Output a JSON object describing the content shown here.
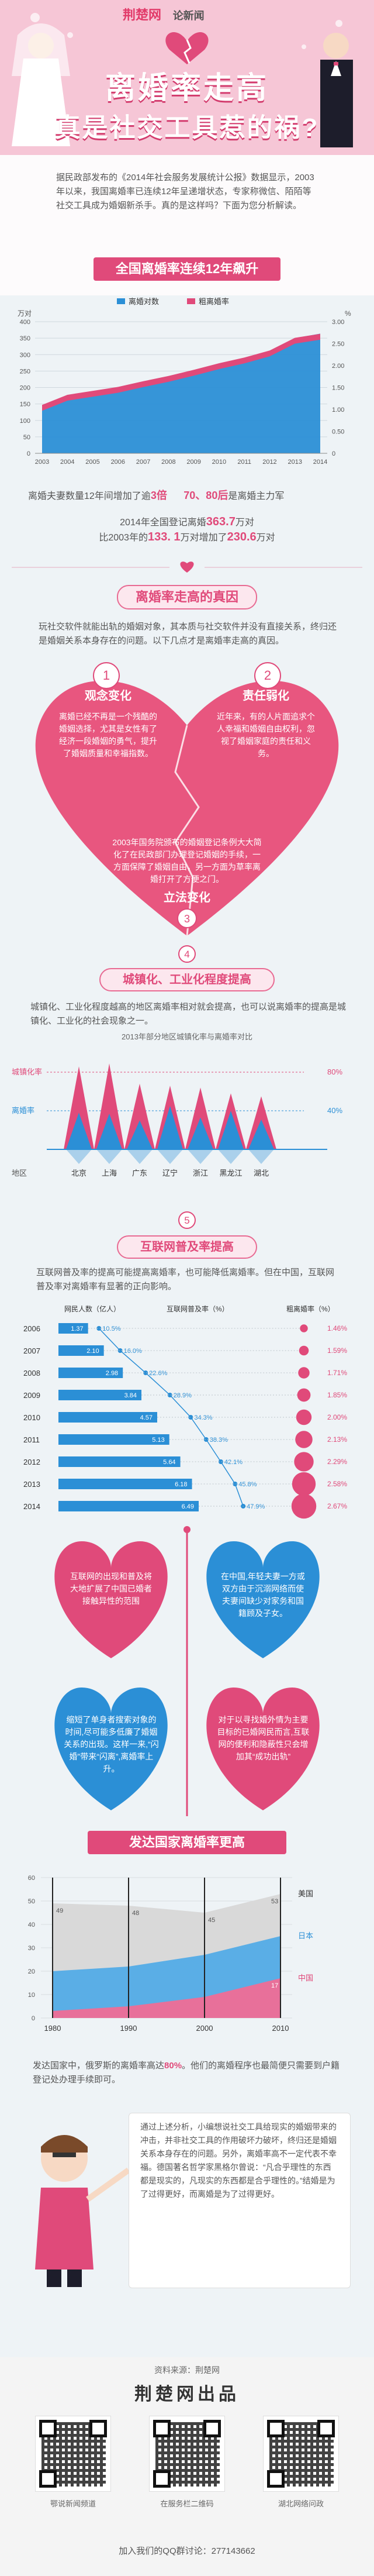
{
  "header": {
    "logo": "荆楚网",
    "logo_sub": "论新闻",
    "title_line1": "离婚率走高",
    "title_line2": "真是社交工具惹的祸?",
    "intro": "据民政部发布的《2014年社会服务发展统计公报》数据显示，2003年以来，我国离婚率已连续12年呈递增状态，专家称微信、陌陌等社交工具成为婚姻新杀手。真的是这样吗？下面为您分析解读。"
  },
  "section1": {
    "title": "全国离婚率连续12年飙升"
  },
  "chart1": {
    "type": "area",
    "legend": [
      "离婚对数",
      "粗离婚率"
    ],
    "y_left_unit": "万对",
    "y_right_unit": "%",
    "y_left_ticks": [
      "400",
      "350",
      "300",
      "250",
      "200",
      "150",
      "100",
      "50",
      "0"
    ],
    "y_right_ticks": [
      "3.00",
      "2.50",
      "2.00",
      "1.50",
      "1.00",
      "0.50",
      "0"
    ],
    "x_ticks": [
      "2003",
      "2004",
      "2005",
      "2006",
      "2007",
      "2008",
      "2009",
      "2010",
      "2011",
      "2012",
      "2013",
      "2014"
    ]
  },
  "chart_data": [
    {
      "type": "area",
      "title": "全国离婚率连续12年飙升",
      "x": [
        2003,
        2004,
        2005,
        2006,
        2007,
        2008,
        2009,
        2010,
        2011,
        2012,
        2013,
        2014
      ],
      "series": [
        {
          "name": "离婚对数",
          "unit": "万对",
          "values": [
            133.1,
            166.5,
            178.5,
            191.3,
            209.8,
            226.9,
            246.8,
            267.8,
            287.4,
            310.4,
            350.0,
            363.7
          ]
        },
        {
          "name": "粗离婚率",
          "unit": "%",
          "values": [
            1.05,
            1.28,
            1.37,
            1.46,
            1.59,
            1.71,
            1.85,
            2.0,
            2.13,
            2.29,
            2.58,
            2.67
          ]
        }
      ],
      "ylim_left": [
        0,
        400
      ],
      "ylim_right": [
        0,
        3.0
      ]
    },
    {
      "type": "bar",
      "title": "2013年部分地区城镇化率与离婚率对比",
      "categories": [
        "北京",
        "上海",
        "广东",
        "辽宁",
        "浙江",
        "黑龙江",
        "湖北"
      ],
      "series": [
        {
          "name": "城镇化率",
          "values": [
            86,
            89,
            68,
            66,
            64,
            58,
            55
          ]
        },
        {
          "name": "离婚率",
          "values": [
            38,
            37,
            30,
            45,
            33,
            40,
            31
          ]
        }
      ],
      "ylim": [
        0,
        100
      ]
    },
    {
      "type": "bar",
      "title": "互联网普及率与离婚率",
      "categories": [
        "2006",
        "2007",
        "2008",
        "2009",
        "2010",
        "2011",
        "2012",
        "2013",
        "2014"
      ],
      "series": [
        {
          "name": "网民人数（亿人）",
          "values": [
            1.37,
            2.1,
            2.98,
            3.84,
            4.57,
            5.13,
            5.64,
            6.18,
            6.49
          ]
        },
        {
          "name": "互联网普及率（%）",
          "values": [
            10.5,
            16.0,
            22.6,
            28.9,
            34.3,
            38.3,
            42.1,
            45.8,
            47.9
          ]
        },
        {
          "name": "粗离婚率（%）",
          "values": [
            1.46,
            1.59,
            1.71,
            1.85,
            2.0,
            2.13,
            2.29,
            2.58,
            2.67
          ]
        }
      ]
    },
    {
      "type": "area",
      "title": "发达国家离婚率更高",
      "x": [
        1980,
        1990,
        2000,
        2010
      ],
      "series": [
        {
          "name": "美国",
          "values": [
            49,
            48,
            45,
            53
          ]
        },
        {
          "name": "日本",
          "values": [
            20,
            22,
            27,
            35
          ]
        },
        {
          "name": "中国",
          "values": [
            3,
            5,
            9,
            17
          ]
        }
      ],
      "ylim": [
        0,
        60
      ]
    }
  ],
  "stats": {
    "line1_prefix": "离婚夫妻数量12年间增加了逾",
    "line1_num": "3倍",
    "line1_mid": "70、80后",
    "line1_suffix": "是离婚主力军",
    "line2_prefix": "2014年全国登记离婚",
    "line2_num": "363.7",
    "line2_suffix": "万对",
    "line3_prefix": "比2003年的",
    "line3_num1": "133. 1",
    "line3_mid": "万对增加了",
    "line3_num2": "230.6",
    "line3_suffix": "万对"
  },
  "section2": {
    "title": "离婚率走高的真因",
    "intro": "玩社交软件就能出轨的婚姻对象，其本质与社交软件并没有直接关系，终归还是婚姻关系本身存在的问题。以下几点才是离婚率走高的真因。",
    "items": [
      {
        "num": "1",
        "title": "观念变化",
        "text": "离婚已经不再是一个残酷的婚姻选择，尤其是女性有了经济一段婚姻的勇气，提升了婚姻质量和幸福指数。"
      },
      {
        "num": "2",
        "title": "责任弱化",
        "text": "近年来，有的人片面追求个人幸福和婚姻自由权利，忽视了婚姻家庭的责任和义务。"
      },
      {
        "num": "3",
        "title": "立法变化",
        "text": "2003年国务院颁布的婚姻登记条例大大简化了在民政部门办理登记婚姻的手续，一方面保障了婚姻自由，另一方面为草率离婚打开了方便之门。"
      },
      {
        "num": "4",
        "title": "城镇化、工业化程度提高",
        "text": "城镇化、工业化程度越高的地区离婚率相对就会提高，也可以说离婚率的提高是城镇化、工业化的社会现象之一。"
      }
    ]
  },
  "chart2": {
    "title": "2013年部分地区城镇化率与离婚率对比",
    "y_label_top": "城镇化率",
    "y_label_mid": "离婚率",
    "y_label_bottom": "地区",
    "pct80": "80%",
    "pct40": "40%",
    "cities": [
      "北京",
      "上海",
      "广东",
      "辽宁",
      "浙江",
      "黑龙江",
      "湖北"
    ]
  },
  "section5": {
    "num": "5",
    "title": "互联网普及率提高",
    "text": "互联网普及率的提高可能提高离婚率，也可能降低离婚率。但在中国，互联网普及率对离婚率有显著的正向影响。",
    "col1": "网民人数（亿人）",
    "col2": "互联网普及率（%）",
    "col3": "粗离婚率（%）",
    "years": [
      "2006",
      "2007",
      "2008",
      "2009",
      "2010",
      "2011",
      "2012",
      "2013",
      "2014"
    ],
    "netizens": [
      "1.37",
      "2.10",
      "2.98",
      "3.84",
      "4.57",
      "5.13",
      "5.64",
      "6.18",
      "6.49"
    ],
    "penetration": [
      "10.5%",
      "16.0%",
      "22.6%",
      "28.9%",
      "34.3%",
      "38.3%",
      "42.1%",
      "45.8%",
      "47.9%"
    ],
    "divorce": [
      "1.46%",
      "1.59%",
      "1.71%",
      "1.85%",
      "2.00%",
      "2.13%",
      "2.29%",
      "2.58%",
      "2.67%"
    ]
  },
  "hearts": [
    "互联网的出现和普及将大地扩展了中国已婚者接触异性的范围",
    "在中国,年轻夫妻一方或双方由于沉溺网络而使夫妻间缺少对家务和国籍顾及子女。",
    "缩短了单身者搜索对象的时间,尽可能多低廉了婚姻关系的出现。这样一来,“闪婚”带来“闪离”,离婚率上升。",
    "对于以寻找婚外情为主要目标的已婚网民而言,互联网的便利和隐蔽性只会增加其“成功出轨”"
  ],
  "section6": {
    "title": "发达国家离婚率更高",
    "legend": [
      "美国",
      "日本",
      "中国"
    ],
    "y_ticks": [
      "60",
      "50",
      "40",
      "30",
      "20",
      "10",
      "0"
    ],
    "x_ticks": [
      "1980",
      "1990",
      "2000",
      "2010"
    ],
    "label_vals": [
      "49",
      "48",
      "45",
      "53",
      "17"
    ],
    "text_prefix": "发达国家中，俄罗斯的离婚率高达",
    "text_num": "80%",
    "text_suffix": "。他们的离婚程序也最简便只需要到户籍登记处办理手续即可。"
  },
  "conclusion": "通过上述分析，小编想说社交工具给现实的婚姻带来的冲击，并非社交工具的作用破坏力破坏，终归还是婚姻关系本身存在的问题。另外，离婚率高不一定代表不幸福。德国著名哲学家黑格尔曾说：“凡合乎理性的东西都是现实的，凡现实的东西都是合乎理性的。”结婚是为了过得更好，而离婚是为了过得更好。",
  "footer": {
    "source": "资料来源：荆楚网",
    "brand": "荆楚网出品",
    "qr_labels": [
      "鄂说新闻频道",
      "在服务栏二维码",
      "湖北网络问政"
    ],
    "qq": "加入我们的QQ群讨论：277143662"
  },
  "colors": {
    "pink": "#e04a7a",
    "blue": "#2b8fd6",
    "light_blue": "#67b8e6"
  }
}
